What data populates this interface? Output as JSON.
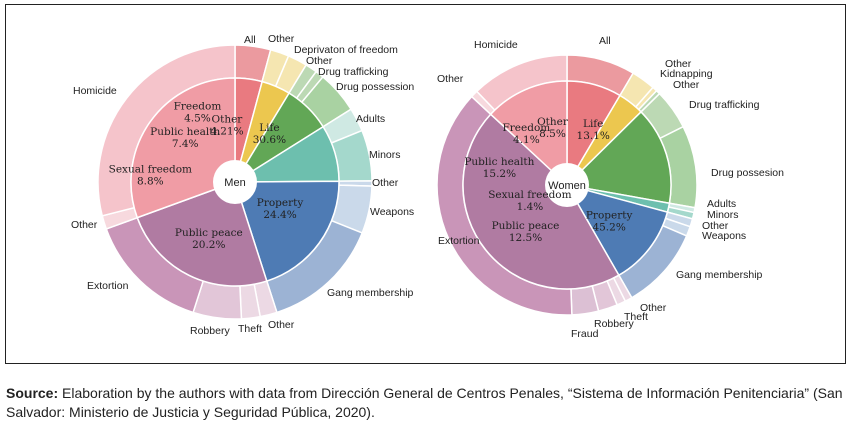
{
  "chart_data": [
    {
      "type": "pie",
      "subtype": "nested-donut",
      "title": "Men",
      "inner": [
        {
          "name": "Other",
          "value": 4.21,
          "label": "4.21%"
        },
        {
          "name": "Freedom",
          "value": 4.5,
          "label": "4.5%"
        },
        {
          "name": "Public health",
          "value": 7.4,
          "label": "7.4%"
        },
        {
          "name": "Sexual freedom",
          "value": 8.8,
          "label": "8.8%"
        },
        {
          "name": "Public peace",
          "value": 20.2,
          "label": "20.2%"
        },
        {
          "name": "Property",
          "value": 24.4,
          "label": "24.4%"
        },
        {
          "name": "Life",
          "value": 30.6,
          "label": "30.6%"
        }
      ],
      "outer": [
        {
          "name": "All",
          "value": 4.2
        },
        {
          "name": "Other",
          "value": 2.2
        },
        {
          "name": "Deprivaton of freedom",
          "value": 2.3
        },
        {
          "name": "Other",
          "value": 1.4
        },
        {
          "name": "Drug trafficking",
          "value": 1.0
        },
        {
          "name": "Drug possession",
          "value": 5.0
        },
        {
          "name": "Adults",
          "value": 2.8
        },
        {
          "name": "Minors",
          "value": 6.0
        },
        {
          "name": "Other",
          "value": 0.6
        },
        {
          "name": "Weapons",
          "value": 5.6
        },
        {
          "name": "Gang membership",
          "value": 14.0
        },
        {
          "name": "Other",
          "value": 2.0
        },
        {
          "name": "Theft",
          "value": 2.2
        },
        {
          "name": "Robbery",
          "value": 5.7
        },
        {
          "name": "Extortion",
          "value": 14.5
        },
        {
          "name": "Other",
          "value": 1.6
        },
        {
          "name": "Homicide",
          "value": 29.0
        }
      ]
    },
    {
      "type": "pie",
      "subtype": "nested-donut",
      "title": "Women",
      "inner": [
        {
          "name": "Other",
          "value": 8.5,
          "label": "8.5%"
        },
        {
          "name": "Freedom",
          "value": 4.1,
          "label": "4.1%"
        },
        {
          "name": "Public health",
          "value": 15.2,
          "label": "15.2%"
        },
        {
          "name": "Sexual freedom",
          "value": 1.4,
          "label": "1.4%"
        },
        {
          "name": "Public peace",
          "value": 12.5,
          "label": "12.5%"
        },
        {
          "name": "Property",
          "value": 45.2,
          "label": "45.2%"
        },
        {
          "name": "Life",
          "value": 13.1,
          "label": "13.1%"
        }
      ],
      "outer": [
        {
          "name": "All",
          "value": 8.5
        },
        {
          "name": "Other",
          "value": 3.0
        },
        {
          "name": "Kidnapping",
          "value": 0.6
        },
        {
          "name": "Other",
          "value": 0.5
        },
        {
          "name": "Drug trafficking",
          "value": 5.0
        },
        {
          "name": "Drug possesion",
          "value": 10.2
        },
        {
          "name": "Adults",
          "value": 0.6
        },
        {
          "name": "Minors",
          "value": 0.8
        },
        {
          "name": "Other",
          "value": 1.0
        },
        {
          "name": "Weapons",
          "value": 1.2
        },
        {
          "name": "Gang membership",
          "value": 10.3
        },
        {
          "name": "Other",
          "value": 0.9
        },
        {
          "name": "Theft",
          "value": 1.1
        },
        {
          "name": "Robbery",
          "value": 2.4
        },
        {
          "name": "Fraud",
          "value": 3.3
        },
        {
          "name": "Extortion",
          "value": 37.5
        },
        {
          "name": "Other",
          "value": 0.9
        },
        {
          "name": "Homicide",
          "value": 12.2
        }
      ]
    }
  ],
  "source": {
    "label": "Source:",
    "text": " Elaboration by the authors with data from Dirección General de Centros Penales, “Sistema de Información Penitenciaria” (San Salvador: Ministerio de Justicia y Seguridad Pública, 2020)."
  }
}
